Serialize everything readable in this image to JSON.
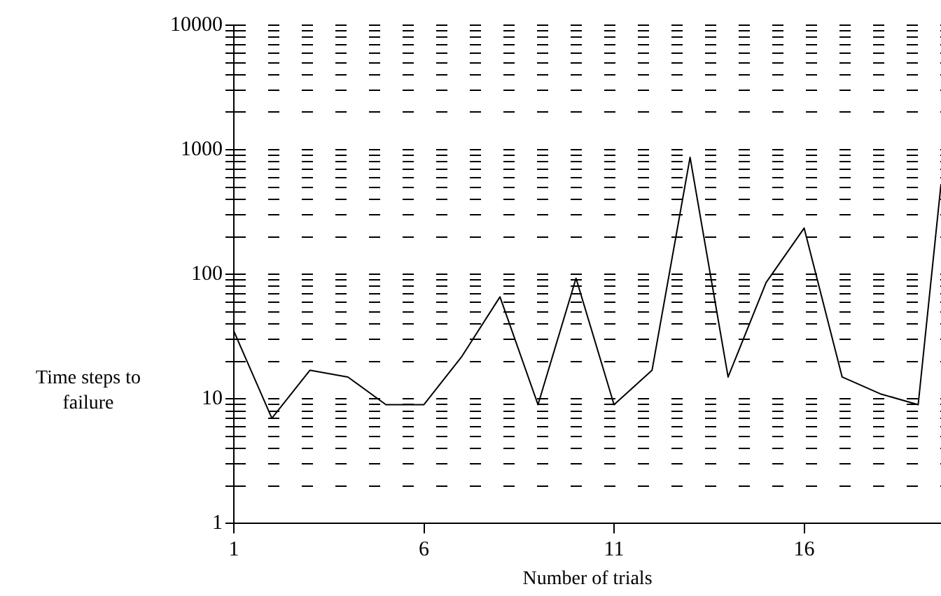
{
  "chart_data": {
    "type": "line",
    "xlabel": "Number of trials",
    "ylabel": "Time steps to\nfailure",
    "x": [
      1,
      2,
      3,
      4,
      5,
      6,
      7,
      8,
      9,
      10,
      11,
      12,
      13,
      14,
      15,
      16,
      17,
      18,
      19,
      19.6
    ],
    "values": [
      35,
      7,
      17,
      15,
      9,
      9,
      22,
      66,
      9,
      93,
      9,
      17,
      870,
      15,
      86,
      235,
      15,
      11,
      9,
      530
    ],
    "color": "#000000",
    "log": true,
    "grid": "y",
    "marker": "none",
    "line_style": "solid",
    "xlim": [
      1,
      19.6
    ],
    "xticks": [
      1,
      6,
      11,
      16
    ],
    "ylim": [
      1,
      10000
    ],
    "yticks": [
      1,
      {
        "value": 2,
        "label": null
      },
      {
        "value": 3,
        "label": null
      },
      {
        "value": 4,
        "label": null
      },
      {
        "value": 5,
        "label": null
      },
      {
        "value": 6,
        "label": null
      },
      {
        "value": 7,
        "label": null
      },
      {
        "value": 8,
        "label": null
      },
      {
        "value": 9,
        "label": null
      },
      10,
      {
        "value": 20,
        "label": null
      },
      {
        "value": 30,
        "label": null
      },
      {
        "value": 40,
        "label": null
      },
      {
        "value": 50,
        "label": null
      },
      {
        "value": 60,
        "label": null
      },
      {
        "value": 70,
        "label": null
      },
      {
        "value": 80,
        "label": null
      },
      {
        "value": 90,
        "label": null
      },
      100,
      {
        "value": 200,
        "label": null
      },
      {
        "value": 300,
        "label": null
      },
      {
        "value": 400,
        "label": null
      },
      {
        "value": 500,
        "label": null
      },
      {
        "value": 600,
        "label": null
      },
      {
        "value": 700,
        "label": null
      },
      {
        "value": 800,
        "label": null
      },
      {
        "value": 900,
        "label": null
      },
      1000,
      {
        "value": 2000,
        "label": null
      },
      {
        "value": 3000,
        "label": null
      },
      {
        "value": 4000,
        "label": null
      },
      {
        "value": 5000,
        "label": null
      },
      {
        "value": 6000,
        "label": null
      },
      {
        "value": 7000,
        "label": null
      },
      {
        "value": 8000,
        "label": null
      },
      {
        "value": 9000,
        "label": null
      },
      10000
    ],
    "legend": false
  }
}
